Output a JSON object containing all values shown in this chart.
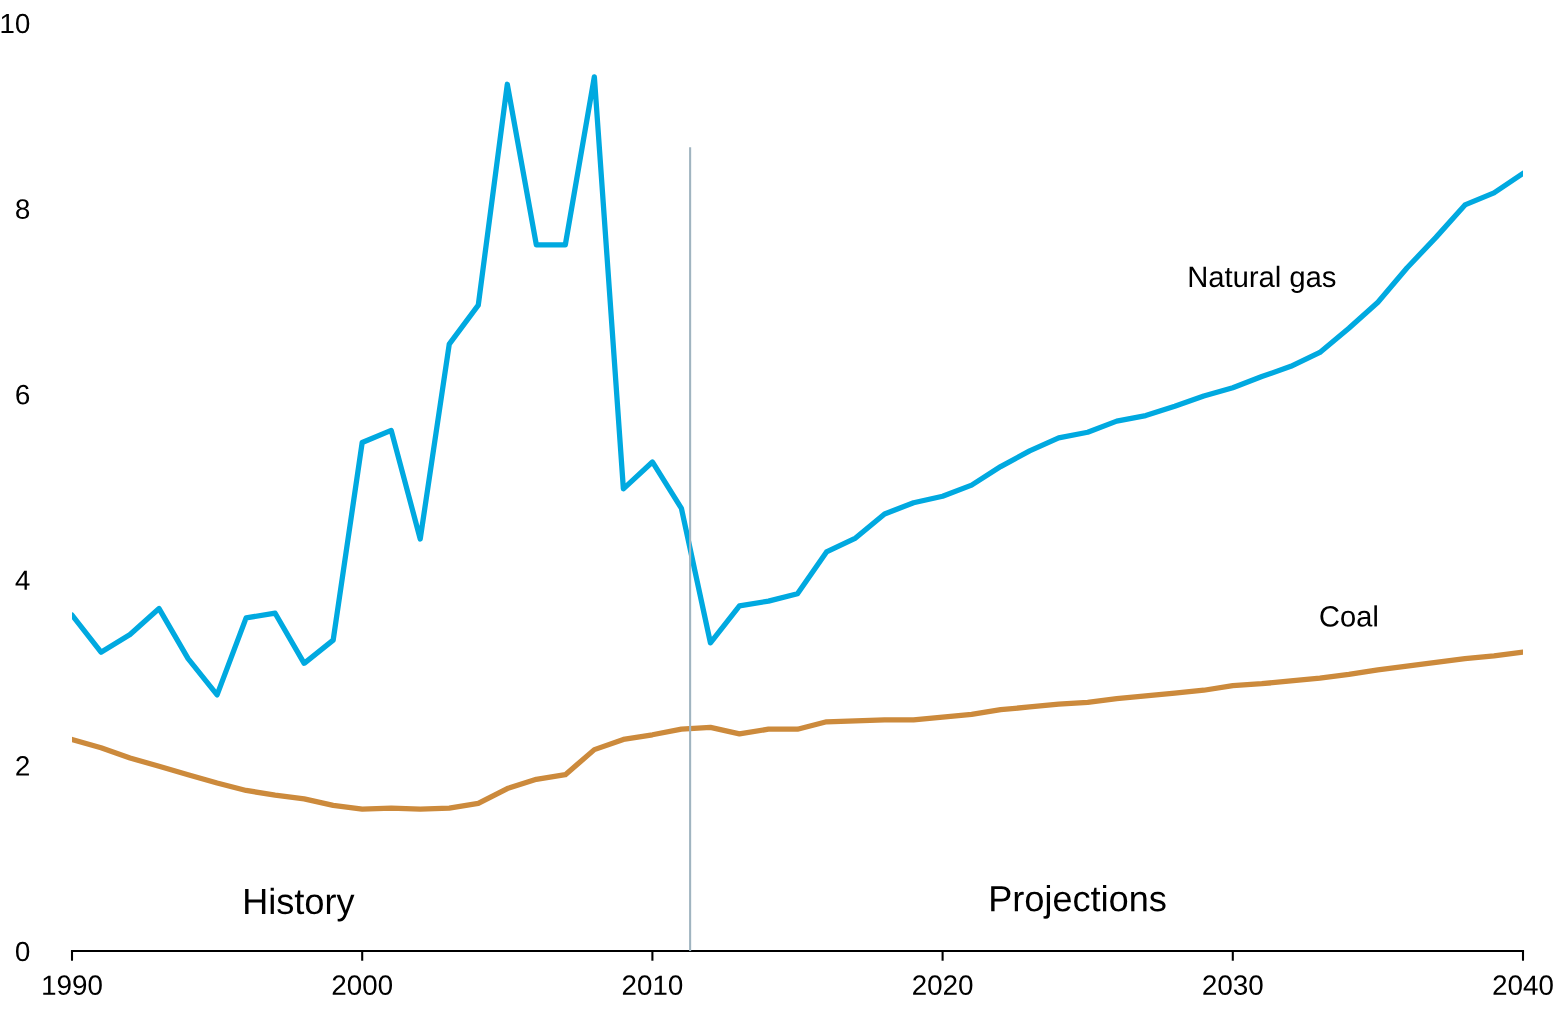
{
  "chart_data": {
    "type": "line",
    "x": [
      1990,
      1991,
      1992,
      1993,
      1994,
      1995,
      1996,
      1997,
      1998,
      1999,
      2000,
      2001,
      2002,
      2003,
      2004,
      2005,
      2006,
      2007,
      2008,
      2009,
      2010,
      2011,
      2012,
      2013,
      2014,
      2015,
      2016,
      2017,
      2018,
      2019,
      2020,
      2021,
      2022,
      2023,
      2024,
      2025,
      2026,
      2027,
      2028,
      2029,
      2030,
      2031,
      2032,
      2033,
      2034,
      2035,
      2036,
      2037,
      2038,
      2039,
      2040
    ],
    "series": [
      {
        "name": "Natural gas",
        "color": "#00a9e0",
        "values": [
          3.62,
          3.22,
          3.41,
          3.69,
          3.15,
          2.76,
          3.59,
          3.64,
          3.1,
          3.35,
          5.48,
          5.61,
          4.44,
          6.54,
          6.96,
          9.34,
          7.61,
          7.61,
          9.42,
          4.98,
          5.27,
          4.77,
          3.32,
          3.72,
          3.77,
          3.85,
          4.3,
          4.45,
          4.71,
          4.83,
          4.9,
          5.02,
          5.22,
          5.39,
          5.53,
          5.59,
          5.71,
          5.77,
          5.87,
          5.98,
          6.07,
          6.19,
          6.3,
          6.45,
          6.71,
          6.99,
          7.36,
          7.69,
          8.04,
          8.17,
          8.38
        ]
      },
      {
        "name": "Coal",
        "color": "#cc8a3c",
        "values": [
          2.28,
          2.19,
          2.08,
          1.99,
          1.9,
          1.81,
          1.73,
          1.68,
          1.64,
          1.57,
          1.53,
          1.54,
          1.53,
          1.54,
          1.59,
          1.75,
          1.85,
          1.9,
          2.17,
          2.28,
          2.33,
          2.39,
          2.41,
          2.34,
          2.39,
          2.39,
          2.47,
          2.48,
          2.49,
          2.49,
          2.52,
          2.55,
          2.6,
          2.63,
          2.66,
          2.68,
          2.72,
          2.75,
          2.78,
          2.81,
          2.86,
          2.88,
          2.91,
          2.94,
          2.98,
          3.03,
          3.07,
          3.11,
          3.15,
          3.18,
          3.22
        ]
      }
    ],
    "xlim": [
      1990,
      2040
    ],
    "xticks": [
      1990,
      2000,
      2010,
      2020,
      2030,
      2040
    ],
    "ylim": [
      0,
      10
    ],
    "yticks": [
      0,
      2,
      4,
      6,
      8,
      10
    ],
    "ref_lines": [
      {
        "axis": "x",
        "value": 2011.3,
        "label": null,
        "color": "#a0b4c0"
      }
    ],
    "annotations": [
      "History",
      "Projections"
    ],
    "grid": false,
    "legend": false
  }
}
